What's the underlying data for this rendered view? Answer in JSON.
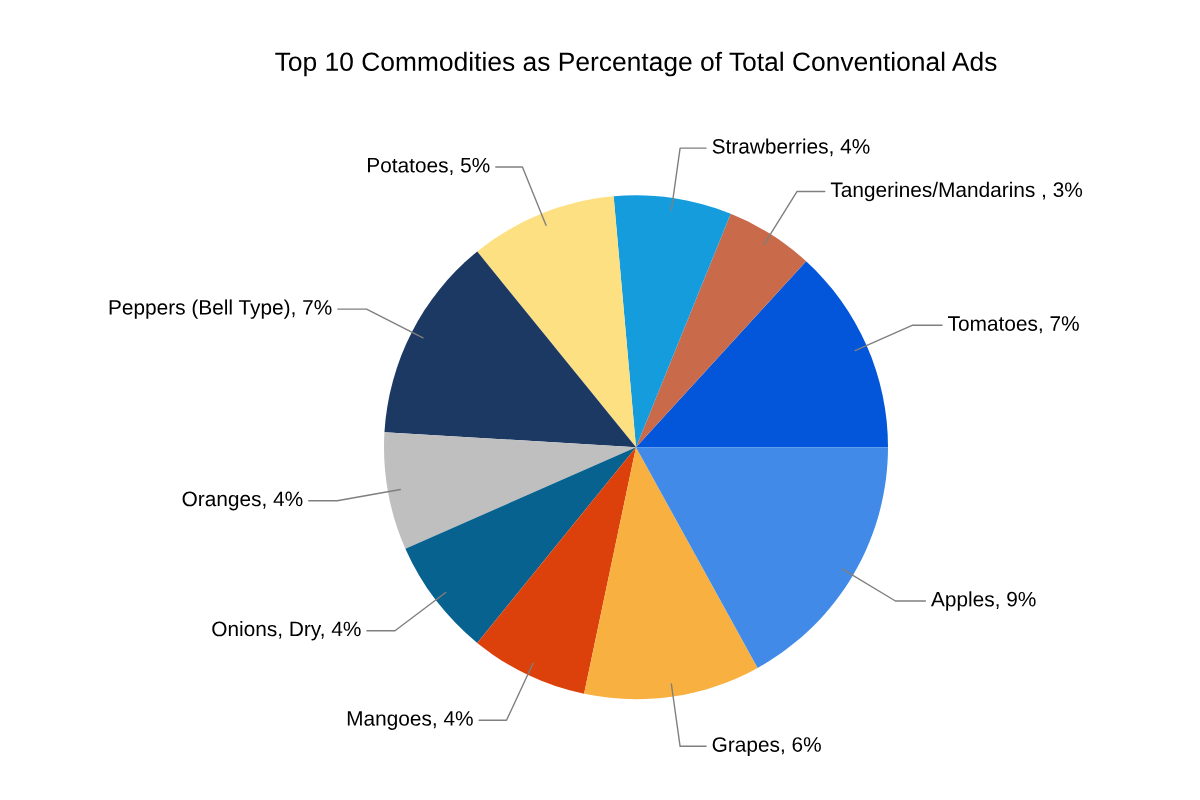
{
  "chart_data": {
    "type": "pie",
    "title": "Top 10 Commodities as Percentage of Total Conventional Ads",
    "categories": [
      "Tomatoes",
      "Tangerines/Mandarins ",
      "Strawberries",
      "Potatoes",
      "Peppers (Bell Type)",
      "Oranges",
      "Onions, Dry",
      "Mangoes",
      "Grapes",
      "Apples"
    ],
    "values": [
      7,
      3,
      4,
      5,
      7,
      4,
      4,
      4,
      6,
      9
    ],
    "value_labels": [
      "7%",
      "3%",
      "4%",
      "5%",
      "7%",
      "4%",
      "4%",
      "4%",
      "6%",
      "9%"
    ],
    "colors": [
      "#0356d9",
      "#c96a4b",
      "#159cdc",
      "#fde081",
      "#1c3964",
      "#bfbfbf",
      "#08628f",
      "#dc410c",
      "#f8b140",
      "#418ae8"
    ],
    "legend": false
  }
}
